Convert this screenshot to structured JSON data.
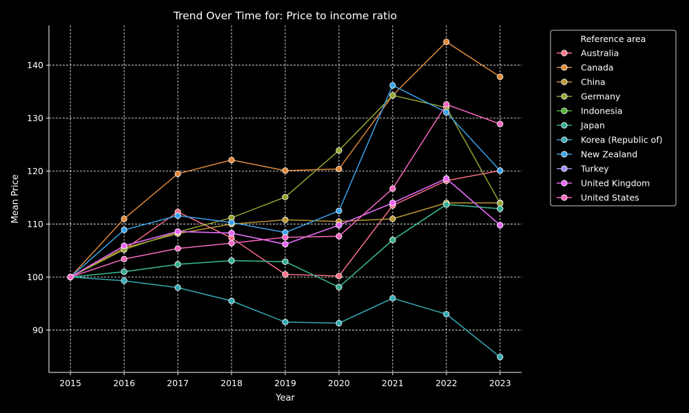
{
  "chart_data": {
    "type": "line",
    "title": "Trend Over Time for: Price to income ratio",
    "xlabel": "Year",
    "ylabel": "Mean Price",
    "x": [
      2015,
      2016,
      2017,
      2018,
      2019,
      2020,
      2021,
      2022,
      2023
    ],
    "xlim": [
      2014.6,
      2023.4
    ],
    "ylim": [
      82.0,
      147.5
    ],
    "yticks": [
      90,
      100,
      110,
      120,
      130,
      140
    ],
    "grid": true,
    "legend_title": "Reference area",
    "legend_position": "outside-top-right",
    "series": [
      {
        "name": "Australia",
        "color": "#f77189",
        "values": [
          100.0,
          105.2,
          112.3,
          107.4,
          100.5,
          100.2,
          113.5,
          118.2,
          120.1
        ]
      },
      {
        "name": "Canada",
        "color": "#e18a3b",
        "values": [
          100.0,
          111.0,
          119.5,
          122.1,
          120.1,
          120.4,
          134.3,
          144.4,
          137.8
        ]
      },
      {
        "name": "China",
        "color": "#bb9832",
        "values": [
          100.0,
          105.5,
          108.2,
          110.0,
          110.8,
          110.5,
          111.0,
          114.0,
          114.0
        ]
      },
      {
        "name": "Germany",
        "color": "#97a431",
        "values": [
          100.0,
          105.2,
          108.5,
          111.2,
          115.1,
          123.9,
          134.3,
          132.0,
          113.9
        ]
      },
      {
        "name": "Indonesia",
        "color": "#50b131",
        "values": [
          100.0,
          101.0,
          102.4,
          103.1,
          102.9,
          98.1,
          107.0,
          113.7,
          112.9
        ]
      },
      {
        "name": "Japan",
        "color": "#34ae91",
        "values": [
          100.0,
          101.0,
          102.4,
          103.1,
          102.9,
          98.1,
          107.0,
          113.7,
          112.9
        ]
      },
      {
        "name": "Korea (Republic of)",
        "color": "#37abb4",
        "values": [
          100.0,
          99.3,
          98.0,
          95.5,
          91.5,
          91.3,
          96.0,
          93.0,
          84.9
        ]
      },
      {
        "name": "New Zealand",
        "color": "#3ba3ec",
        "values": [
          100.0,
          108.9,
          111.6,
          110.3,
          108.4,
          112.5,
          136.2,
          131.1,
          120.1
        ]
      },
      {
        "name": "Turkey",
        "color": "#a48cf4",
        "values": [
          100.0,
          105.9,
          108.6,
          108.3,
          106.2,
          109.8,
          114.0,
          118.6,
          109.8
        ]
      },
      {
        "name": "United Kingdom",
        "color": "#e866f4",
        "values": [
          100.0,
          105.9,
          108.6,
          108.3,
          106.2,
          109.8,
          114.0,
          118.6,
          109.8
        ]
      },
      {
        "name": "United States",
        "color": "#f668c2",
        "values": [
          100.0,
          103.4,
          105.4,
          106.4,
          107.5,
          107.7,
          116.7,
          132.6,
          128.9
        ]
      }
    ]
  }
}
